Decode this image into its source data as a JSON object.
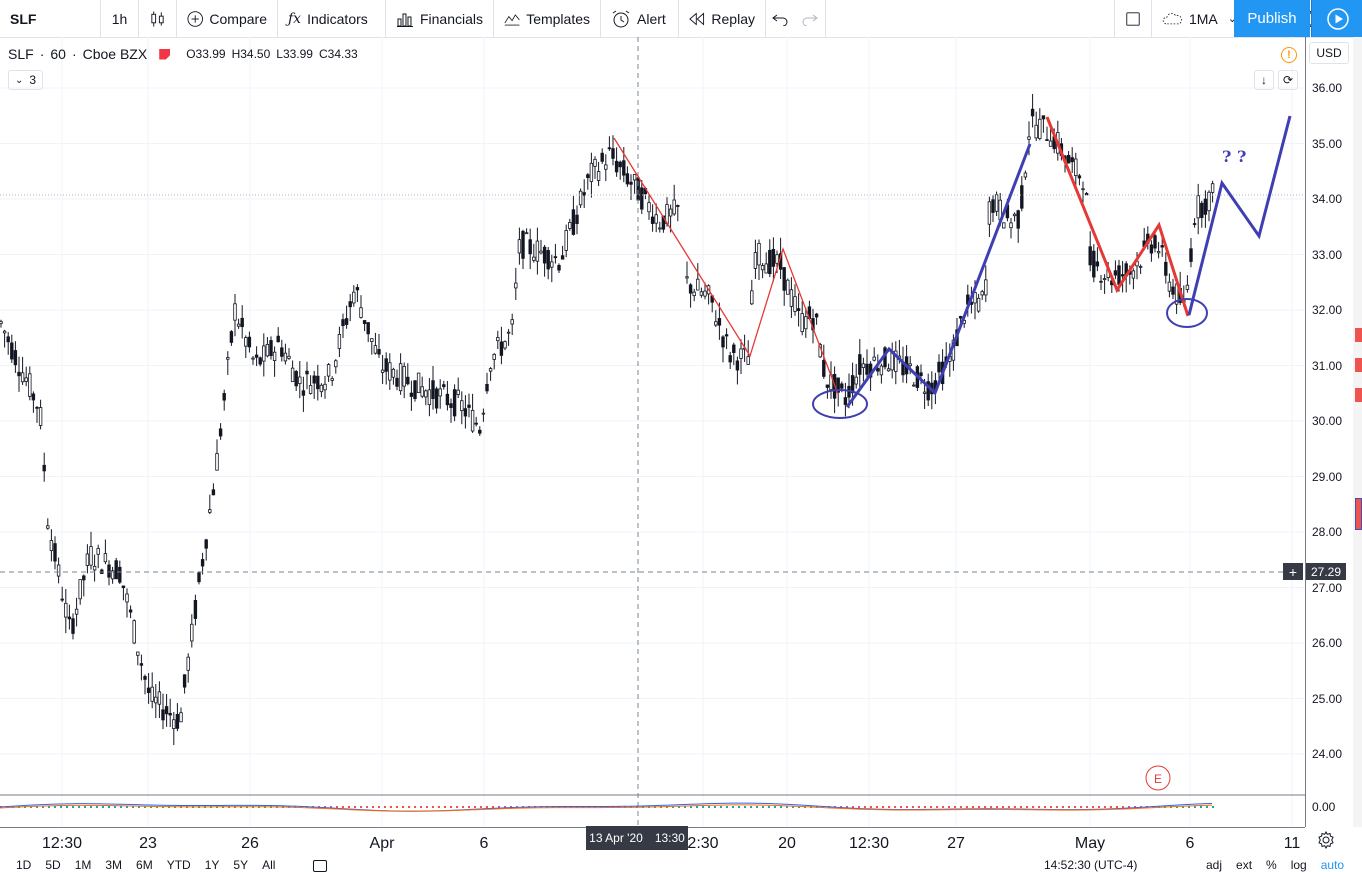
{
  "toolbar": {
    "symbol": "SLF",
    "interval": "1h",
    "compare": "Compare",
    "indicators": "Indicators",
    "financials": "Financials",
    "templates": "Templates",
    "alert": "Alert",
    "replay": "Replay",
    "layout_name": "1MA",
    "publish": "Publish"
  },
  "legend": {
    "symbol": "SLF",
    "interval": "60",
    "exchange": "Cboe BZX",
    "open": "O33.99",
    "high": "H34.50",
    "low": "L33.99",
    "close": "C34.33",
    "studies_count": "3"
  },
  "price_axis": {
    "currency": "USD",
    "ticks": [
      "36.00",
      "35.00",
      "34.00",
      "33.00",
      "32.00",
      "31.00",
      "30.00",
      "29.00",
      "28.00",
      "27.00",
      "26.00",
      "25.00",
      "24.00"
    ],
    "macd_tick": "0.00",
    "crosshair_price": "27.29"
  },
  "time_axis": {
    "ticks": [
      "12:30",
      "23",
      "26",
      "Apr",
      "6",
      "2:30",
      "20",
      "12:30",
      "27",
      "May",
      "6",
      "11"
    ],
    "crosshair_date": "13 Apr '20",
    "crosshair_time": "13:30"
  },
  "annotations": {
    "question_marks": "? ?",
    "earnings_marker": "E"
  },
  "bottom_bar": {
    "ranges": [
      "1D",
      "5D",
      "1M",
      "3M",
      "6M",
      "YTD",
      "1Y",
      "5Y",
      "All"
    ],
    "clock": "14:52:30 (UTC-4)",
    "options": [
      "adj",
      "ext",
      "%",
      "log",
      "auto"
    ]
  },
  "colors": {
    "accent": "#2196f3",
    "red_line": "#e53935",
    "blue_line": "#3f3fb3",
    "candle": "#131722"
  }
}
